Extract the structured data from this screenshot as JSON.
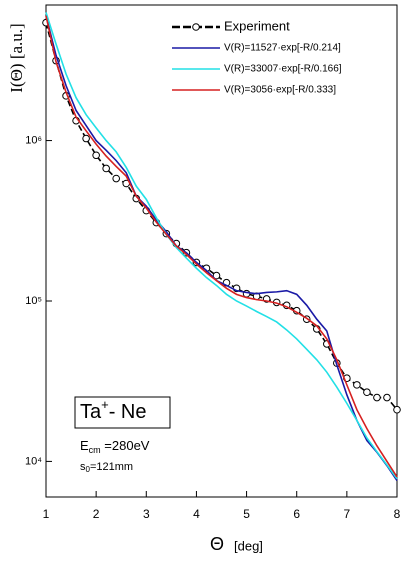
{
  "chart_data": {
    "type": "line",
    "x_label": "Θ",
    "x_unit": "[deg]",
    "y_label": "I(Θ) [a.u.]",
    "x": [
      1,
      1.2,
      1.4,
      1.6,
      1.8,
      2,
      2.2,
      2.4,
      2.6,
      2.8,
      3,
      3.2,
      3.4,
      3.6,
      3.8,
      4,
      4.2,
      4.4,
      4.6,
      4.8,
      5,
      5.2,
      5.4,
      5.6,
      5.8,
      6,
      6.2,
      6.4,
      6.6,
      6.8,
      7,
      7.2,
      7.4,
      7.6,
      7.8,
      8
    ],
    "xlim": [
      1,
      8
    ],
    "xticks": [
      1,
      2,
      3,
      4,
      5,
      6,
      7,
      8
    ],
    "ylim": [
      6000,
      7000000
    ],
    "log_y": true,
    "yticks": [
      {
        "value": 10000,
        "label": "10⁴"
      },
      {
        "value": 100000,
        "label": "10⁵"
      },
      {
        "value": 1000000,
        "label": "10⁶"
      }
    ],
    "legend": "upper right",
    "series": [
      {
        "name": "Experiment",
        "color": "#000000",
        "markers": true,
        "dashed": true,
        "values": [
          5430000,
          3150000,
          1900000,
          1330000,
          1030000,
          810000,
          670000,
          580000,
          540000,
          435000,
          366000,
          308000,
          263000,
          228000,
          200000,
          174000,
          160000,
          144000,
          130000,
          120000,
          111000,
          107000,
          103000,
          98000,
          94000,
          87000,
          77000,
          67000,
          54000,
          41000,
          33000,
          30000,
          27000,
          25000,
          25000,
          21000
        ]
      },
      {
        "name": "V(R)=11527·exp[-R/0.214]",
        "color": "#1a1aa6",
        "markers": false,
        "dashed": false,
        "values": [
          6000000,
          3400000,
          2200000,
          1540000,
          1240000,
          1000000,
          870000,
          750000,
          630000,
          450000,
          390000,
          320000,
          270000,
          220000,
          200000,
          174000,
          155000,
          134000,
          125000,
          116000,
          113000,
          111000,
          113000,
          114000,
          116000,
          110000,
          94000,
          77000,
          65000,
          40000,
          26000,
          18000,
          13500,
          11400,
          9400,
          7600
        ]
      },
      {
        "name": "V(R)=33007·exp[-R/0.166]",
        "color": "#22e0e6",
        "markers": false,
        "dashed": false,
        "values": [
          6300000,
          4000000,
          2600000,
          1850000,
          1450000,
          1200000,
          1000000,
          850000,
          680000,
          520000,
          430000,
          330000,
          260000,
          215000,
          185000,
          160000,
          140000,
          125000,
          110000,
          100000,
          93000,
          86000,
          80000,
          74000,
          66000,
          58000,
          50000,
          43000,
          36000,
          29000,
          23000,
          18000,
          14000,
          11500,
          9500,
          7800
        ]
      },
      {
        "name": "V(R)=3056·exp[-R/0.333]",
        "color": "#d62020",
        "markers": false,
        "dashed": false,
        "values": [
          6000000,
          3100000,
          2000000,
          1400000,
          1150000,
          950000,
          800000,
          690000,
          600000,
          450000,
          380000,
          310000,
          260000,
          220000,
          195000,
          170000,
          150000,
          134000,
          120000,
          110000,
          105000,
          102000,
          100000,
          97000,
          92000,
          85000,
          78000,
          70000,
          58000,
          43000,
          30000,
          21000,
          16000,
          12500,
          10000,
          8000
        ]
      }
    ],
    "annotations": {
      "system": [
        "Ta",
        "+",
        "- Ne"
      ],
      "energy": [
        "E",
        "cm",
        " =280eV"
      ],
      "distance": [
        "s",
        "0",
        "=121mm"
      ]
    }
  }
}
